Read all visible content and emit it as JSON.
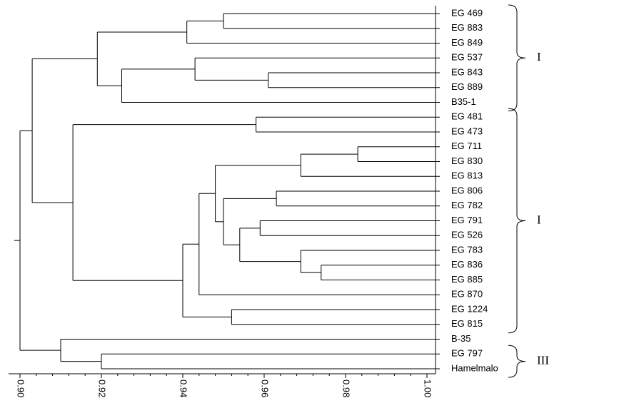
{
  "chart_data": {
    "type": "dendrogram",
    "title": "",
    "xlabel": "",
    "ylabel": "",
    "x_axis": {
      "range": [
        0.9,
        1.0
      ],
      "ticks": [
        "0.90",
        "0.92",
        "0.94",
        "0.96",
        "0.98",
        "1.00"
      ]
    },
    "leaves": [
      "EG 469",
      "EG 883",
      "EG 849",
      "EG 537",
      "EG 843",
      "EG 889",
      "B35-1",
      "EG 481",
      "EG 473",
      "EG 711",
      "EG 830",
      "EG 813",
      "EG 806",
      "EG 782",
      "EG 791",
      "EG 526",
      "EG 783",
      "EG 836",
      "EG 885",
      "EG 870",
      "EG 1224",
      "EG 815",
      "B-35",
      "EG 797",
      "Hamelmalo"
    ],
    "merges": [
      {
        "id": "m1",
        "a": "EG 469",
        "b": "EG 883",
        "sim": 0.95
      },
      {
        "id": "m2",
        "a": "m1",
        "b": "EG 849",
        "sim": 0.941
      },
      {
        "id": "m3",
        "a": "EG 843",
        "b": "EG 889",
        "sim": 0.961
      },
      {
        "id": "m4",
        "a": "EG 537",
        "b": "m3",
        "sim": 0.943
      },
      {
        "id": "m5",
        "a": "m4",
        "b": "B35-1",
        "sim": 0.925
      },
      {
        "id": "m6",
        "a": "m2",
        "b": "m5",
        "sim": 0.919
      },
      {
        "id": "m7",
        "a": "EG 481",
        "b": "EG 473",
        "sim": 0.958
      },
      {
        "id": "m8",
        "a": "EG 711",
        "b": "EG 830",
        "sim": 0.983
      },
      {
        "id": "m9",
        "a": "m8",
        "b": "EG 813",
        "sim": 0.969
      },
      {
        "id": "m10",
        "a": "EG 806",
        "b": "EG 782",
        "sim": 0.963
      },
      {
        "id": "m11",
        "a": "EG 791",
        "b": "EG 526",
        "sim": 0.959
      },
      {
        "id": "m12",
        "a": "EG 836",
        "b": "EG 885",
        "sim": 0.974
      },
      {
        "id": "m13",
        "a": "EG 783",
        "b": "m12",
        "sim": 0.969
      },
      {
        "id": "m14",
        "a": "m11",
        "b": "m13",
        "sim": 0.954
      },
      {
        "id": "m15",
        "a": "m10",
        "b": "m14",
        "sim": 0.95
      },
      {
        "id": "m16",
        "a": "m9",
        "b": "m15",
        "sim": 0.948
      },
      {
        "id": "m17",
        "a": "m16",
        "b": "EG 870",
        "sim": 0.944
      },
      {
        "id": "m18",
        "a": "EG 1224",
        "b": "EG 815",
        "sim": 0.952
      },
      {
        "id": "m19",
        "a": "m17",
        "b": "m18",
        "sim": 0.94
      },
      {
        "id": "m20",
        "a": "m7",
        "b": "m19",
        "sim": 0.913
      },
      {
        "id": "m21",
        "a": "m6",
        "b": "m20",
        "sim": 0.903
      },
      {
        "id": "m22",
        "a": "EG 797",
        "b": "Hamelmalo",
        "sim": 0.92
      },
      {
        "id": "m23",
        "a": "B-35",
        "b": "m22",
        "sim": 0.91
      },
      {
        "id": "m24",
        "a": "m21",
        "b": "m23",
        "sim": 0.9
      }
    ],
    "groups": [
      {
        "label": "I",
        "first_leaf": "EG 469",
        "last_leaf": "B35-1"
      },
      {
        "label": "I",
        "first_leaf": "EG 481",
        "last_leaf": "EG 815"
      },
      {
        "label": "III",
        "first_leaf": "EG 797",
        "last_leaf": "Hamelmalo"
      }
    ]
  }
}
